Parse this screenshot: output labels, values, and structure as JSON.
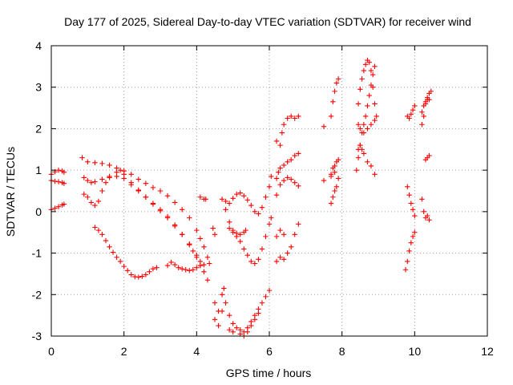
{
  "chart_data": {
    "type": "scatter",
    "title": "Day 177 of 2025, Sidereal Day-to-day VTEC variation (SDTVAR) for receiver wind",
    "xlabel": "GPS time / hours",
    "ylabel": "SDTVAR / TECUs",
    "xlim": [
      0,
      12
    ],
    "ylim": [
      -3,
      4
    ],
    "x_ticks": [
      "0",
      "2",
      "4",
      "6",
      "8",
      "10",
      "12"
    ],
    "y_ticks": [
      "-3",
      "-2",
      "-1",
      "0",
      "1",
      "2",
      "3",
      "4"
    ],
    "grid": true,
    "marker": "+",
    "color": "#ff0000",
    "series": [
      {
        "points": [
          [
            0.0,
            0.05
          ],
          [
            0.1,
            0.08
          ],
          [
            0.2,
            0.12
          ],
          [
            0.3,
            0.16
          ],
          [
            0.35,
            0.18
          ]
        ]
      },
      {
        "points": [
          [
            0.0,
            0.9
          ],
          [
            0.1,
            0.96
          ],
          [
            0.2,
            1.0
          ],
          [
            0.3,
            0.98
          ],
          [
            0.35,
            0.95
          ]
        ]
      },
      {
        "points": [
          [
            0.0,
            0.75
          ],
          [
            0.1,
            0.73
          ],
          [
            0.2,
            0.72
          ],
          [
            0.3,
            0.7
          ],
          [
            0.35,
            0.68
          ]
        ]
      },
      {
        "points": [
          [
            0.85,
            1.3
          ],
          [
            1.0,
            1.2
          ],
          [
            1.2,
            1.18
          ],
          [
            1.4,
            1.16
          ],
          [
            1.6,
            1.12
          ],
          [
            1.8,
            1.05
          ],
          [
            2.0,
            0.98
          ],
          [
            2.2,
            0.9
          ],
          [
            2.4,
            0.78
          ],
          [
            2.6,
            0.68
          ],
          [
            2.8,
            0.58
          ],
          [
            3.0,
            0.5
          ],
          [
            3.2,
            0.38
          ],
          [
            3.4,
            0.22
          ],
          [
            3.6,
            0.05
          ],
          [
            3.8,
            -0.15
          ],
          [
            4.0,
            -0.45
          ],
          [
            4.1,
            -0.65
          ],
          [
            4.2,
            -0.85
          ],
          [
            4.3,
            -1.1
          ],
          [
            4.35,
            -1.25
          ]
        ]
      },
      {
        "points": [
          [
            0.9,
            0.82
          ],
          [
            1.0,
            0.75
          ],
          [
            1.1,
            0.7
          ],
          [
            1.2,
            0.72
          ],
          [
            1.4,
            0.78
          ],
          [
            1.6,
            0.82
          ],
          [
            1.8,
            0.85
          ],
          [
            2.0,
            0.8
          ],
          [
            2.2,
            0.65
          ],
          [
            2.4,
            0.5
          ],
          [
            2.6,
            0.35
          ],
          [
            2.8,
            0.2
          ],
          [
            3.0,
            0.05
          ],
          [
            3.2,
            -0.12
          ],
          [
            3.4,
            -0.32
          ],
          [
            3.6,
            -0.55
          ],
          [
            3.8,
            -0.8
          ],
          [
            3.9,
            -0.95
          ],
          [
            4.0,
            -1.1
          ],
          [
            4.1,
            -1.3
          ]
        ]
      },
      {
        "points": [
          [
            0.9,
            0.42
          ],
          [
            1.0,
            0.35
          ],
          [
            1.1,
            0.22
          ],
          [
            1.2,
            0.15
          ],
          [
            1.3,
            0.25
          ],
          [
            1.4,
            0.5
          ],
          [
            1.5,
            0.7
          ],
          [
            1.6,
            0.85
          ],
          [
            1.8,
            0.95
          ],
          [
            1.9,
            1.0
          ],
          [
            2.0,
            0.9
          ],
          [
            2.2,
            0.7
          ],
          [
            2.4,
            0.52
          ],
          [
            2.6,
            0.35
          ],
          [
            2.8,
            0.18
          ],
          [
            3.0,
            0.02
          ],
          [
            3.2,
            -0.15
          ],
          [
            3.4,
            -0.35
          ],
          [
            3.6,
            -0.55
          ],
          [
            3.8,
            -0.78
          ],
          [
            4.0,
            -1.05
          ],
          [
            4.1,
            -1.2
          ],
          [
            4.2,
            -1.45
          ],
          [
            4.3,
            -1.65
          ]
        ]
      },
      {
        "points": [
          [
            1.2,
            -0.38
          ],
          [
            1.3,
            -0.45
          ],
          [
            1.4,
            -0.55
          ],
          [
            1.5,
            -0.7
          ],
          [
            1.6,
            -0.85
          ],
          [
            1.7,
            -0.98
          ],
          [
            1.8,
            -1.1
          ],
          [
            1.9,
            -1.2
          ],
          [
            2.0,
            -1.32
          ],
          [
            2.1,
            -1.42
          ],
          [
            2.2,
            -1.52
          ],
          [
            2.3,
            -1.57
          ],
          [
            2.4,
            -1.58
          ],
          [
            2.5,
            -1.56
          ],
          [
            2.6,
            -1.52
          ],
          [
            2.7,
            -1.45
          ],
          [
            2.8,
            -1.38
          ],
          [
            2.9,
            -1.35
          ]
        ]
      },
      {
        "points": [
          [
            3.2,
            -1.3
          ],
          [
            3.3,
            -1.22
          ],
          [
            3.4,
            -1.28
          ],
          [
            3.5,
            -1.35
          ],
          [
            3.6,
            -1.38
          ],
          [
            3.7,
            -1.4
          ],
          [
            3.8,
            -1.42
          ],
          [
            3.9,
            -1.4
          ],
          [
            4.0,
            -1.35
          ],
          [
            4.1,
            -1.3
          ],
          [
            4.2,
            -1.28
          ]
        ]
      },
      {
        "points": [
          [
            4.1,
            0.35
          ],
          [
            4.2,
            0.3
          ],
          [
            4.25,
            0.3
          ]
        ]
      },
      {
        "points": [
          [
            4.45,
            -0.4
          ],
          [
            4.5,
            -0.55
          ]
        ]
      },
      {
        "points": [
          [
            4.7,
            0.3
          ],
          [
            4.8,
            0.25
          ],
          [
            4.9,
            0.2
          ],
          [
            5.0,
            0.32
          ],
          [
            5.1,
            0.42
          ],
          [
            5.2,
            0.45
          ],
          [
            5.3,
            0.38
          ],
          [
            5.4,
            0.28
          ],
          [
            5.5,
            0.15
          ],
          [
            5.6,
            0.0
          ],
          [
            5.7,
            -0.05
          ],
          [
            5.8,
            0.1
          ],
          [
            5.9,
            0.35
          ],
          [
            6.0,
            0.6
          ],
          [
            6.05,
            0.85
          ]
        ]
      },
      {
        "points": [
          [
            4.8,
            0.05
          ],
          [
            4.9,
            -0.25
          ],
          [
            5.0,
            -0.5
          ],
          [
            5.1,
            -0.6
          ],
          [
            5.2,
            -0.72
          ],
          [
            5.3,
            -0.9
          ],
          [
            5.4,
            -1.05
          ],
          [
            5.5,
            -1.2
          ],
          [
            5.6,
            -1.25
          ],
          [
            5.7,
            -1.15
          ],
          [
            5.8,
            -0.9
          ],
          [
            5.9,
            -0.6
          ],
          [
            6.0,
            -0.3
          ],
          [
            6.05,
            -0.15
          ]
        ]
      },
      {
        "points": [
          [
            4.9,
            -0.4
          ],
          [
            5.0,
            -0.45
          ],
          [
            5.1,
            -0.52
          ],
          [
            5.2,
            -0.55
          ],
          [
            5.3,
            -0.5
          ],
          [
            5.35,
            -0.45
          ]
        ]
      },
      {
        "points": [
          [
            4.5,
            -2.2
          ],
          [
            4.6,
            -2.4
          ],
          [
            4.7,
            -2.0
          ],
          [
            4.75,
            -1.85
          ],
          [
            4.8,
            -2.2
          ],
          [
            4.9,
            -2.5
          ],
          [
            5.0,
            -2.7
          ],
          [
            5.1,
            -2.8
          ],
          [
            5.2,
            -2.85
          ],
          [
            5.3,
            -2.9
          ],
          [
            5.4,
            -2.8
          ],
          [
            5.5,
            -2.65
          ],
          [
            5.6,
            -2.5
          ],
          [
            5.7,
            -2.35
          ],
          [
            5.8,
            -2.2
          ],
          [
            5.9,
            -2.05
          ],
          [
            6.0,
            -1.9
          ]
        ]
      },
      {
        "points": [
          [
            4.5,
            -2.6
          ],
          [
            4.6,
            -2.75
          ],
          [
            4.7,
            -2.4
          ],
          [
            4.9,
            -2.85
          ],
          [
            5.0,
            -2.9
          ],
          [
            5.2,
            -2.95
          ],
          [
            5.3,
            -3.0
          ],
          [
            5.4,
            -2.9
          ],
          [
            5.5,
            -2.75
          ],
          [
            5.6,
            -2.6
          ],
          [
            5.7,
            -2.45
          ]
        ]
      },
      {
        "points": [
          [
            6.2,
            1.7
          ],
          [
            6.3,
            1.6
          ],
          [
            6.35,
            1.9
          ],
          [
            6.4,
            2.1
          ],
          [
            6.5,
            2.25
          ],
          [
            6.6,
            2.3
          ],
          [
            6.7,
            2.25
          ],
          [
            6.8,
            2.3
          ]
        ]
      },
      {
        "points": [
          [
            6.2,
            0.8
          ],
          [
            6.25,
            0.95
          ],
          [
            6.3,
            1.05
          ],
          [
            6.4,
            1.12
          ],
          [
            6.5,
            1.2
          ],
          [
            6.6,
            1.25
          ],
          [
            6.7,
            1.35
          ],
          [
            6.8,
            1.4
          ]
        ]
      },
      {
        "points": [
          [
            6.2,
            0.4
          ],
          [
            6.3,
            0.65
          ],
          [
            6.4,
            0.75
          ],
          [
            6.5,
            0.82
          ],
          [
            6.6,
            0.78
          ],
          [
            6.7,
            0.7
          ],
          [
            6.8,
            0.62
          ]
        ]
      },
      {
        "points": [
          [
            6.2,
            -0.6
          ],
          [
            6.3,
            -0.45
          ],
          [
            6.4,
            -0.55
          ]
        ]
      },
      {
        "points": [
          [
            6.2,
            -1.2
          ],
          [
            6.3,
            -1.1
          ],
          [
            6.4,
            -1.15
          ],
          [
            6.5,
            -1.0
          ],
          [
            6.6,
            -0.85
          ],
          [
            6.7,
            -0.55
          ],
          [
            6.8,
            -0.3
          ]
        ]
      },
      {
        "points": [
          [
            7.5,
            2.05
          ]
        ]
      },
      {
        "points": [
          [
            7.5,
            0.75
          ]
        ]
      },
      {
        "points": [
          [
            7.7,
            2.3
          ],
          [
            7.75,
            2.65
          ],
          [
            7.8,
            2.9
          ],
          [
            7.85,
            3.1
          ],
          [
            7.9,
            3.2
          ]
        ]
      },
      {
        "points": [
          [
            7.7,
            0.9
          ],
          [
            7.75,
            1.05
          ],
          [
            7.8,
            1.1
          ],
          [
            7.85,
            1.2
          ],
          [
            7.9,
            1.25
          ]
        ]
      },
      {
        "points": [
          [
            7.7,
            0.85
          ],
          [
            7.8,
            0.95
          ],
          [
            7.9,
            0.8
          ]
        ]
      },
      {
        "points": [
          [
            7.7,
            0.2
          ],
          [
            7.75,
            0.35
          ],
          [
            7.8,
            0.5
          ],
          [
            7.85,
            0.6
          ]
        ]
      },
      {
        "points": [
          [
            8.4,
            1.0
          ],
          [
            8.45,
            1.3
          ],
          [
            8.5,
            1.6
          ],
          [
            8.55,
            1.9
          ],
          [
            8.6,
            2.1
          ],
          [
            8.65,
            2.3
          ],
          [
            8.7,
            2.55
          ],
          [
            8.75,
            2.8
          ],
          [
            8.8,
            3.05
          ],
          [
            8.85,
            3.3
          ],
          [
            8.9,
            3.5
          ]
        ]
      },
      {
        "points": [
          [
            8.45,
            2.6
          ],
          [
            8.5,
            2.95
          ],
          [
            8.55,
            3.2
          ],
          [
            8.6,
            3.4
          ],
          [
            8.65,
            3.55
          ],
          [
            8.7,
            3.65
          ],
          [
            8.75,
            3.6
          ],
          [
            8.8,
            3.4
          ],
          [
            8.85,
            3.0
          ],
          [
            8.9,
            2.6
          ]
        ]
      },
      {
        "points": [
          [
            8.45,
            1.5
          ],
          [
            8.5,
            1.6
          ],
          [
            8.55,
            1.5
          ],
          [
            8.6,
            1.4
          ],
          [
            8.7,
            1.2
          ],
          [
            8.8,
            1.1
          ],
          [
            8.9,
            0.9
          ]
        ]
      },
      {
        "points": [
          [
            8.45,
            2.1
          ],
          [
            8.5,
            2.0
          ],
          [
            8.6,
            1.9
          ],
          [
            8.7,
            2.0
          ],
          [
            8.8,
            2.1
          ],
          [
            8.9,
            2.2
          ],
          [
            8.95,
            2.3
          ]
        ]
      },
      {
        "points": [
          [
            9.8,
            2.3
          ],
          [
            9.85,
            2.25
          ],
          [
            9.9,
            2.35
          ],
          [
            9.95,
            2.45
          ],
          [
            10.0,
            2.55
          ]
        ]
      },
      {
        "points": [
          [
            9.8,
            0.6
          ],
          [
            9.85,
            0.4
          ],
          [
            9.9,
            0.2
          ],
          [
            9.95,
            0.05
          ],
          [
            10.0,
            -0.1
          ]
        ]
      },
      {
        "points": [
          [
            9.75,
            -1.4
          ],
          [
            9.8,
            -1.2
          ],
          [
            9.85,
            -0.95
          ],
          [
            9.9,
            -0.75
          ],
          [
            9.95,
            -0.6
          ],
          [
            10.0,
            -0.5
          ]
        ]
      },
      {
        "points": [
          [
            10.2,
            2.4
          ],
          [
            10.25,
            2.55
          ],
          [
            10.3,
            2.6
          ],
          [
            10.35,
            2.7
          ],
          [
            10.4,
            2.85
          ],
          [
            10.45,
            2.9
          ]
        ]
      },
      {
        "points": [
          [
            10.2,
            2.1
          ],
          [
            10.25,
            2.3
          ],
          [
            10.3,
            2.65
          ],
          [
            10.35,
            2.75
          ],
          [
            10.4,
            2.7
          ]
        ]
      },
      {
        "points": [
          [
            10.3,
            1.25
          ],
          [
            10.35,
            1.3
          ],
          [
            10.4,
            1.35
          ]
        ]
      },
      {
        "points": [
          [
            10.2,
            0.3
          ],
          [
            10.25,
            0.0
          ],
          [
            10.3,
            -0.15
          ],
          [
            10.35,
            -0.1
          ],
          [
            10.4,
            -0.2
          ]
        ]
      }
    ]
  }
}
